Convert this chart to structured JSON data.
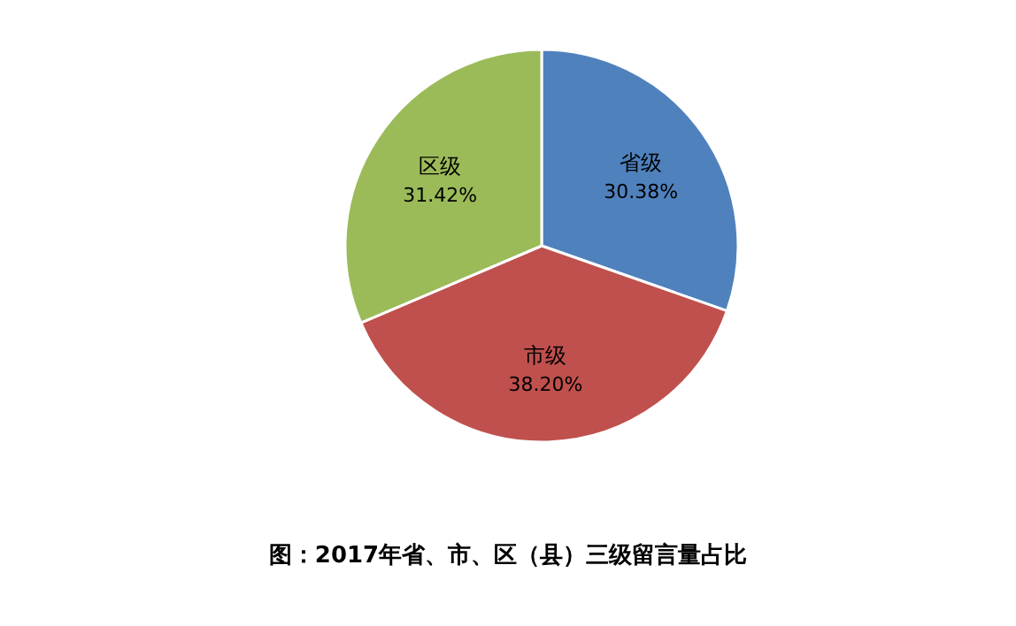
{
  "chart_data": {
    "type": "pie",
    "title": "图：2017年省、市、区（县）三级留言量占比",
    "categories": [
      "省级",
      "市级",
      "区级"
    ],
    "values": [
      30.38,
      38.2,
      31.42
    ],
    "value_labels": [
      "30.38%",
      "38.20%",
      "31.42%"
    ],
    "colors": [
      "#4f81bd",
      "#c0504d",
      "#9bbb59"
    ]
  }
}
